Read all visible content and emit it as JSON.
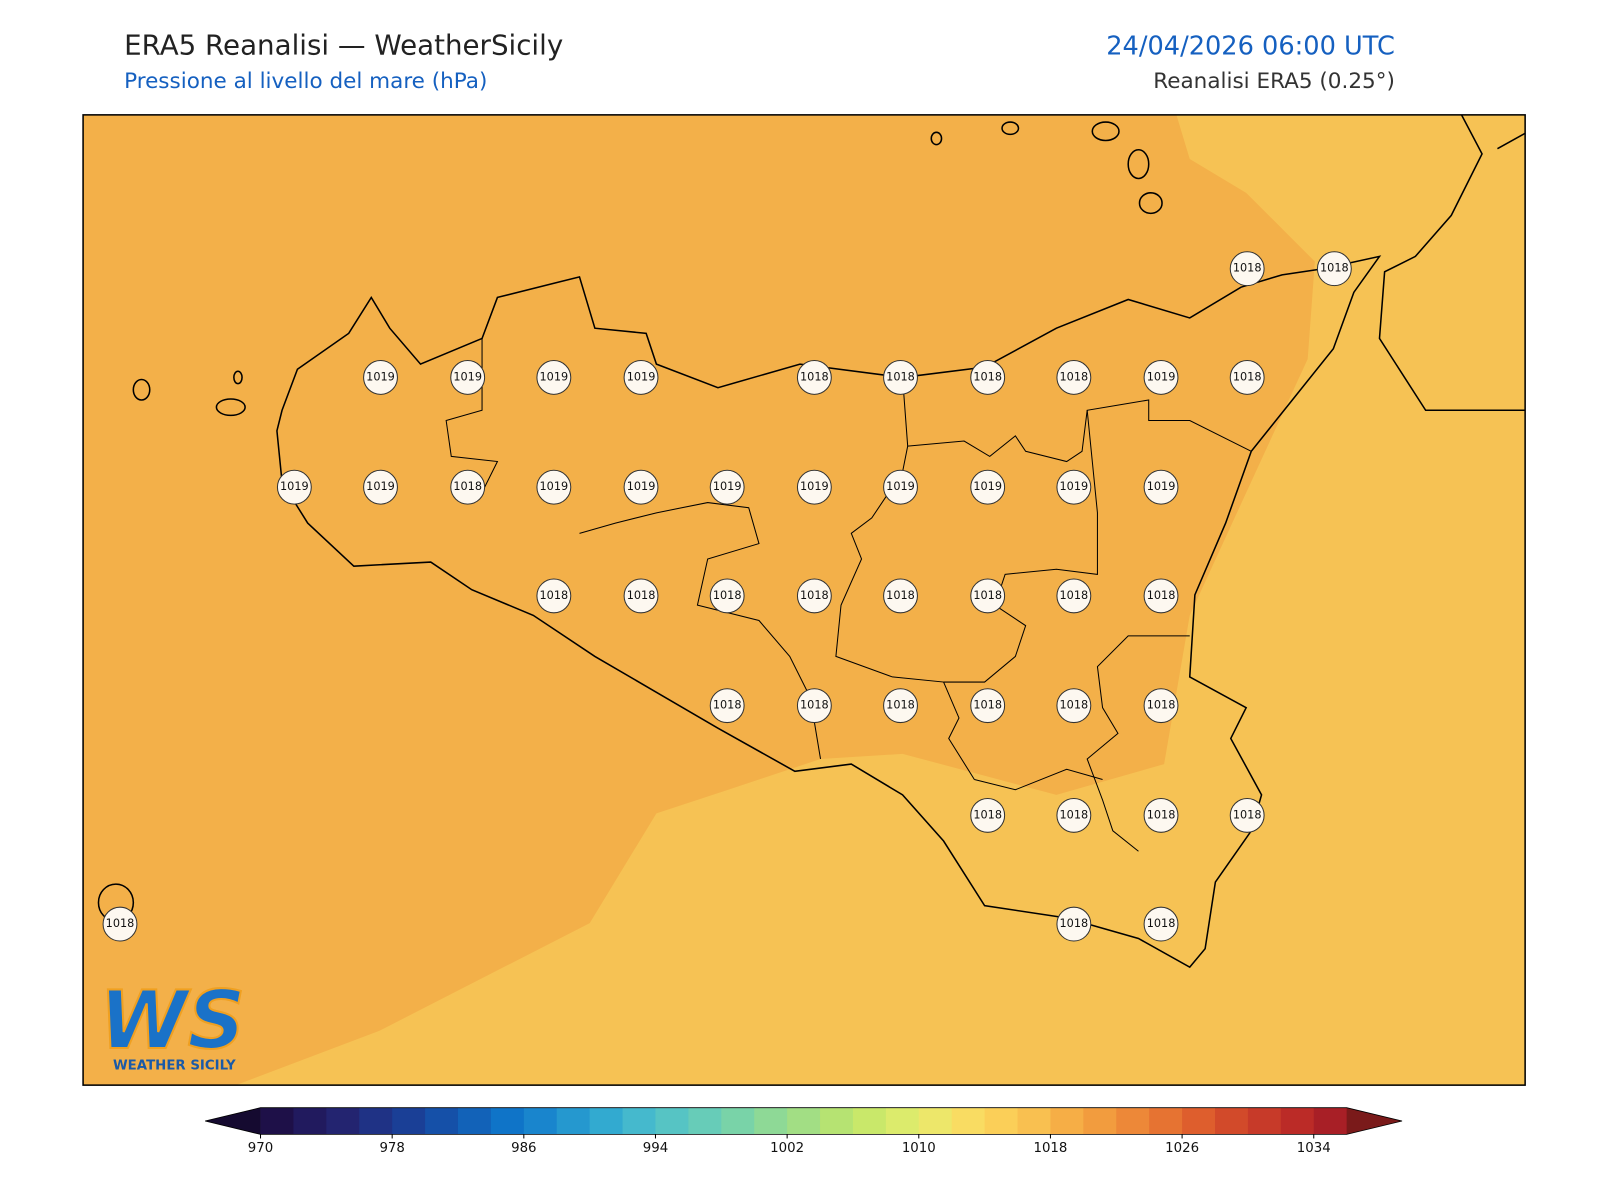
{
  "header": {
    "title": "ERA5 Reanalisi — WeatherSicily",
    "subtitle": "Pressione al livello del mare (hPa)",
    "datetime": "24/04/2026 06:00 UTC",
    "source": "Reanalisi ERA5 (0.25°)"
  },
  "map": {
    "stations": [
      {
        "label": "1018"
      },
      {
        "label": "1018"
      },
      {
        "label": "1019"
      },
      {
        "label": "1019"
      },
      {
        "label": "1019"
      },
      {
        "label": "1019"
      },
      {
        "label": "1018"
      },
      {
        "label": "1018"
      },
      {
        "label": "1018"
      },
      {
        "label": "1018"
      },
      {
        "label": "1019"
      },
      {
        "label": "1018"
      },
      {
        "label": "1019"
      },
      {
        "label": "1019"
      },
      {
        "label": "1018"
      },
      {
        "label": "1019"
      },
      {
        "label": "1019"
      },
      {
        "label": "1019"
      },
      {
        "label": "1019"
      },
      {
        "label": "1019"
      },
      {
        "label": "1019"
      },
      {
        "label": "1019"
      },
      {
        "label": "1019"
      },
      {
        "label": "1018"
      },
      {
        "label": "1018"
      },
      {
        "label": "1018"
      },
      {
        "label": "1018"
      },
      {
        "label": "1018"
      },
      {
        "label": "1018"
      },
      {
        "label": "1018"
      },
      {
        "label": "1018"
      },
      {
        "label": "1018"
      },
      {
        "label": "1018"
      },
      {
        "label": "1018"
      },
      {
        "label": "1018"
      },
      {
        "label": "1018"
      },
      {
        "label": "1018"
      },
      {
        "label": "1018"
      },
      {
        "label": "1018"
      },
      {
        "label": "1018"
      },
      {
        "label": "1018"
      },
      {
        "label": "1018"
      },
      {
        "label": "1018"
      },
      {
        "label": "1018"
      }
    ]
  },
  "colorbar": {
    "range": [
      970,
      1036
    ],
    "ticks": [
      970,
      978,
      986,
      994,
      1002,
      1010,
      1018,
      1026,
      1034
    ],
    "colors": [
      "#1e1048",
      "#211a5e",
      "#232470",
      "#1f3285",
      "#1a3f96",
      "#1550a8",
      "#1262b8",
      "#0f74c8",
      "#1985cd",
      "#2598cf",
      "#32aad0",
      "#45b9cd",
      "#56c4c4",
      "#67ccb8",
      "#79d3a8",
      "#8ed996",
      "#a2de84",
      "#b6e372",
      "#c9e86a",
      "#dceb6c",
      "#ede76a",
      "#f9dc62",
      "#fbcf58",
      "#f9c050",
      "#f6ae46",
      "#f29c3e",
      "#ed8838",
      "#e67332",
      "#de5e2d",
      "#d24a2a",
      "#c73a29",
      "#bb2b27",
      "#a81f26"
    ],
    "under_color": "#150a30",
    "over_color": "#7a1a1a"
  },
  "logo": {
    "mark": "WS",
    "name": "WEATHER SICILY"
  }
}
